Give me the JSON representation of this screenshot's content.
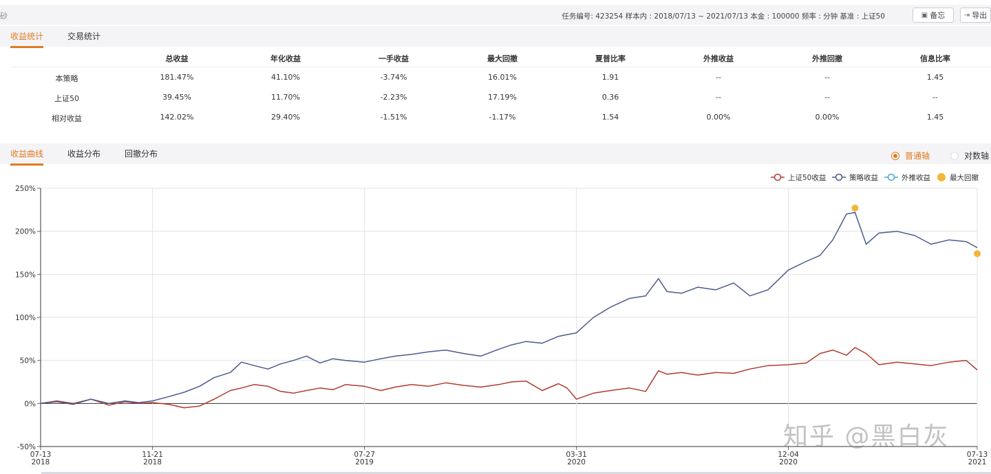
{
  "topbar": {
    "left_glyph": "砂",
    "info": "任务编号: 423254  样本内 : 2018/07/13 ~ 2021/07/13  本金 : 100000  频率 : 分钟  基准 : 上证50",
    "memo_label": "备忘",
    "export_label": "导出",
    "memo_icon": "clipboard-icon",
    "export_icon": "export-icon"
  },
  "stats_tabs": [
    "收益统计",
    "交易统计"
  ],
  "stats_table": {
    "headers": [
      "",
      "总收益",
      "年化收益",
      "一手收益",
      "最大回撤",
      "夏普比率",
      "外推收益",
      "外推回撤",
      "信息比率"
    ],
    "rows": [
      [
        "本策略",
        "181.47%",
        "41.10%",
        "-3.74%",
        "16.01%",
        "1.91",
        "--",
        "--",
        "1.45"
      ],
      [
        "上证50",
        "39.45%",
        "11.70%",
        "-2.23%",
        "17.19%",
        "0.36",
        "--",
        "--",
        "--"
      ],
      [
        "相对收益",
        "142.02%",
        "29.40%",
        "-1.51%",
        "-1.17%",
        "1.54",
        "0.00%",
        "0.00%",
        "1.45"
      ]
    ]
  },
  "chart_tabs": [
    "收益曲线",
    "收益分布",
    "回撤分布"
  ],
  "axis_mode": {
    "normal": "普通轴",
    "log": "对数轴",
    "selected": "normal"
  },
  "watermark": "知乎 @黑白灰",
  "colors": {
    "accent": "#e07a1f",
    "benchmark": "#b03a2e",
    "strategy": "#4a5a8c",
    "extrapolated": "#4aa8d8",
    "max_drawdown": "#f3b63a"
  },
  "chart_data": {
    "type": "line",
    "xlabel": "",
    "ylabel": "",
    "ylim": [
      -50,
      250
    ],
    "yticks": [
      "250%",
      "200%",
      "150%",
      "100%",
      "50%",
      "0%",
      "-50%"
    ],
    "xticks": [
      {
        "date": "2018-07-13",
        "line1": "07-13",
        "line2": "2018"
      },
      {
        "date": "2018-11-21",
        "line1": "11-21",
        "line2": "2018"
      },
      {
        "date": "2019-07-27",
        "line1": "07-27",
        "line2": "2019"
      },
      {
        "date": "2020-03-31",
        "line1": "03-31",
        "line2": "2020"
      },
      {
        "date": "2020-12-04",
        "line1": "12-04",
        "line2": "2020"
      },
      {
        "date": "2021-07-13",
        "line1": "07-13",
        "line2": "2021"
      }
    ],
    "grid": true,
    "legend_position": "top-right",
    "legend": [
      "上证50收益",
      "策略收益",
      "外推收益",
      "最大回撤"
    ],
    "series": [
      {
        "name": "上证50收益",
        "dates": [
          "2018-07-13",
          "2018-08-01",
          "2018-08-20",
          "2018-09-10",
          "2018-10-01",
          "2018-10-20",
          "2018-11-05",
          "2018-11-21",
          "2018-12-10",
          "2018-12-28",
          "2019-01-15",
          "2019-02-01",
          "2019-02-20",
          "2019-03-05",
          "2019-03-20",
          "2019-04-05",
          "2019-04-20",
          "2019-05-05",
          "2019-05-20",
          "2019-06-05",
          "2019-06-20",
          "2019-07-05",
          "2019-07-27",
          "2019-08-15",
          "2019-09-01",
          "2019-09-20",
          "2019-10-10",
          "2019-10-30",
          "2019-11-20",
          "2019-12-10",
          "2019-12-31",
          "2020-01-15",
          "2020-02-01",
          "2020-02-20",
          "2020-03-10",
          "2020-03-20",
          "2020-03-31",
          "2020-04-20",
          "2020-05-10",
          "2020-06-01",
          "2020-06-20",
          "2020-07-05",
          "2020-07-15",
          "2020-08-01",
          "2020-08-20",
          "2020-09-10",
          "2020-10-01",
          "2020-10-20",
          "2020-11-10",
          "2020-12-04",
          "2020-12-25",
          "2021-01-10",
          "2021-01-25",
          "2021-02-10",
          "2021-02-20",
          "2021-03-05",
          "2021-03-20",
          "2021-04-10",
          "2021-05-01",
          "2021-05-20",
          "2021-06-10",
          "2021-06-30",
          "2021-07-13"
        ],
        "values": [
          0,
          3,
          0,
          5,
          -2,
          2,
          0,
          1,
          -1,
          -5,
          -3,
          5,
          15,
          18,
          22,
          20,
          14,
          12,
          15,
          18,
          16,
          22,
          20,
          15,
          19,
          22,
          20,
          24,
          21,
          19,
          22,
          25,
          26,
          15,
          23,
          18,
          5,
          12,
          15,
          18,
          14,
          38,
          34,
          36,
          33,
          36,
          35,
          40,
          44,
          45,
          47,
          58,
          62,
          56,
          65,
          58,
          45,
          48,
          46,
          44,
          48,
          50,
          39
        ]
      },
      {
        "name": "策略收益",
        "dates": [
          "2018-07-13",
          "2018-08-01",
          "2018-08-20",
          "2018-09-10",
          "2018-10-01",
          "2018-10-20",
          "2018-11-05",
          "2018-11-21",
          "2018-12-10",
          "2018-12-28",
          "2019-01-15",
          "2019-02-01",
          "2019-02-20",
          "2019-03-05",
          "2019-03-20",
          "2019-04-05",
          "2019-04-20",
          "2019-05-05",
          "2019-05-20",
          "2019-06-05",
          "2019-06-20",
          "2019-07-05",
          "2019-07-27",
          "2019-08-15",
          "2019-09-01",
          "2019-09-20",
          "2019-10-10",
          "2019-10-30",
          "2019-11-20",
          "2019-12-10",
          "2019-12-31",
          "2020-01-15",
          "2020-02-01",
          "2020-02-20",
          "2020-03-10",
          "2020-03-20",
          "2020-03-31",
          "2020-04-20",
          "2020-05-10",
          "2020-06-01",
          "2020-06-20",
          "2020-07-05",
          "2020-07-15",
          "2020-08-01",
          "2020-08-20",
          "2020-09-10",
          "2020-10-01",
          "2020-10-20",
          "2020-11-10",
          "2020-12-04",
          "2020-12-25",
          "2021-01-10",
          "2021-01-25",
          "2021-02-10",
          "2021-02-20",
          "2021-03-05",
          "2021-03-20",
          "2021-04-10",
          "2021-05-01",
          "2021-05-20",
          "2021-06-10",
          "2021-06-30",
          "2021-07-13"
        ],
        "values": [
          0,
          2,
          -1,
          5,
          0,
          3,
          1,
          3,
          8,
          13,
          20,
          30,
          36,
          48,
          44,
          40,
          46,
          50,
          55,
          47,
          52,
          50,
          48,
          52,
          55,
          57,
          60,
          62,
          58,
          55,
          63,
          68,
          72,
          70,
          78,
          80,
          82,
          100,
          112,
          122,
          125,
          145,
          130,
          128,
          135,
          132,
          140,
          125,
          132,
          155,
          165,
          172,
          190,
          220,
          222,
          185,
          198,
          200,
          195,
          185,
          190,
          188,
          181
        ]
      },
      {
        "name": "外推收益",
        "dates": [],
        "values": []
      }
    ],
    "max_drawdown_points": [
      {
        "date": "2021-02-20",
        "value": 227
      },
      {
        "date": "2021-07-13",
        "value": 174
      }
    ]
  }
}
